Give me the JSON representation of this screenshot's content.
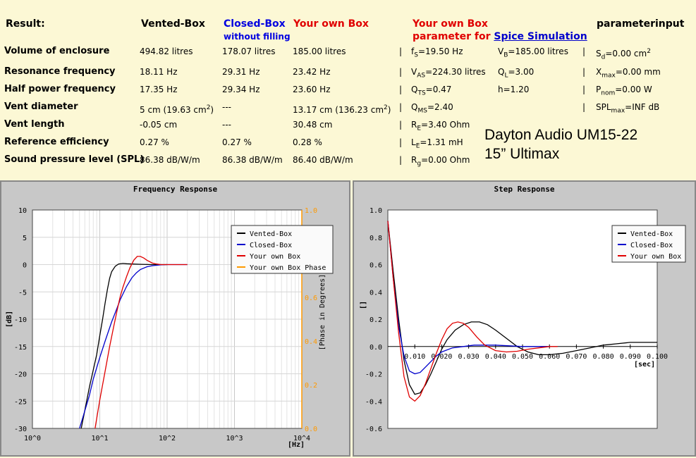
{
  "results": {
    "title": "Result:",
    "col_vented": "Vented-Box",
    "col_closed": "Closed-Box",
    "col_closed_sub": "without filling",
    "col_own": "Your own Box",
    "col_spice_1": "Your own Box",
    "col_spice_2": "parameter for",
    "col_spice_link": "Spice Simulation",
    "col_param": "parameterinput",
    "rows": [
      {
        "label": "Volume of enclosure",
        "vented": "494.82 litres",
        "closed": "178.07 litres",
        "own": "185.00 litres"
      },
      {
        "label": "Resonance frequency",
        "vented": "18.11 Hz",
        "closed": "29.31 Hz",
        "own": "23.42 Hz"
      },
      {
        "label": "Half power frequency",
        "vented": "17.35 Hz",
        "closed": "29.34 Hz",
        "own": "23.60 Hz"
      },
      {
        "label": "Vent diameter",
        "vented": "5 cm (19.63 cm",
        "closed": "---",
        "own": "13.17 cm (136.23 cm"
      },
      {
        "label": "Vent length",
        "vented": "-0.05 cm",
        "closed": "---",
        "own": "30.48 cm"
      },
      {
        "label": "Reference efficiency",
        "vented": "0.27 %",
        "closed": "0.27 %",
        "own": "0.28 %"
      },
      {
        "label": "Sound pressure level (SPL)",
        "vented": "86.38 dB/W/m",
        "closed": "86.38 dB/W/m",
        "own": "86.40 dB/W/m"
      }
    ],
    "unit_close": "2",
    "spice": {
      "fs": {
        "sym": "f",
        "sub": "S",
        "val": "=19.50 Hz"
      },
      "vas": {
        "sym": "V",
        "sub": "AS",
        "val": "=224.30 litres"
      },
      "qts": {
        "sym": "Q",
        "sub": "TS",
        "val": "=0.47"
      },
      "qms": {
        "sym": "Q",
        "sub": "MS",
        "val": "=2.40"
      },
      "re": {
        "sym": "R",
        "sub": "E",
        "val": "=3.40 Ohm"
      },
      "le": {
        "sym": "L",
        "sub": "E",
        "val": "=1.31 mH"
      },
      "rg": {
        "sym": "R",
        "sub": "g",
        "val": "=0.00 Ohm"
      },
      "vb": {
        "sym": "V",
        "sub": "B",
        "val": "=185.00 litres"
      },
      "ql": {
        "sym": "Q",
        "sub": "L",
        "val": "=3.00"
      },
      "h": "h=1.20"
    },
    "params": {
      "sd": {
        "sym": "S",
        "sub": "d",
        "val": "=0.00 cm",
        "sup": "2"
      },
      "xmax": {
        "sym": "X",
        "sub": "max",
        "val": "=0.00 mm"
      },
      "pnom": {
        "sym": "P",
        "sub": "nom",
        "val": "=0.00 W"
      },
      "spl": {
        "sym": "SPL",
        "sub": "max",
        "val": "=INF dB"
      }
    },
    "brand_line1": "Dayton Audio UM15-22",
    "brand_line2": "15” Ultimax"
  },
  "chart_data": [
    {
      "type": "line",
      "title": "Frequency Response",
      "xscale": "log",
      "xlim": [
        1,
        10000
      ],
      "ylim": [
        -30,
        10
      ],
      "y2lim": [
        0.0,
        1.0
      ],
      "xlabel": "[Hz]",
      "ylabel": "[dB]",
      "y2label": "[Phase in Degrees]",
      "x_ticks": [
        "10^0",
        "10^1",
        "10^2",
        "10^3",
        "10^4"
      ],
      "y_ticks": [
        "10",
        "5",
        "0",
        "-5",
        "-10",
        "-15",
        "-20",
        "-25",
        "-30"
      ],
      "y2_ticks": [
        "1.0",
        "0.8",
        "0.6",
        "0.4",
        "0.2",
        "0.0"
      ],
      "legend_position": "top-right",
      "series": [
        {
          "name": "Vented-Box",
          "color": "#000000",
          "x": [
            5.3,
            7,
            9,
            10,
            11,
            12,
            13,
            14,
            15,
            17,
            19,
            22,
            25,
            30,
            40,
            60,
            100
          ],
          "y": [
            -30,
            -22.5,
            -16.5,
            -13,
            -10,
            -7,
            -4.5,
            -2.5,
            -1.3,
            -0.3,
            0.1,
            0.2,
            0.15,
            0.1,
            0.05,
            0,
            0
          ]
        },
        {
          "name": "Closed-Box",
          "color": "#0000cc",
          "x": [
            5,
            7,
            8,
            10,
            12,
            15,
            18,
            20,
            25,
            30,
            35,
            40,
            50,
            60,
            80,
            100,
            200
          ],
          "y": [
            -30,
            -24,
            -21,
            -17,
            -14,
            -10.5,
            -8,
            -6.5,
            -4,
            -2.4,
            -1.5,
            -0.9,
            -0.4,
            -0.2,
            -0.05,
            0,
            0
          ]
        },
        {
          "name": "Your own Box",
          "color": "#e00000",
          "x": [
            8.5,
            10,
            12,
            14,
            16,
            18,
            20,
            22,
            25,
            28,
            32,
            36,
            40,
            45,
            50,
            60,
            70,
            80,
            100,
            200
          ],
          "y": [
            -30,
            -24.8,
            -19.5,
            -15,
            -11.5,
            -8.5,
            -6,
            -4.2,
            -2.2,
            -0.6,
            0.8,
            1.5,
            1.5,
            1.2,
            0.8,
            0.3,
            0.1,
            0,
            0,
            0
          ]
        },
        {
          "name": "Your own Box Phase",
          "color": "#ff9900",
          "x": [],
          "y": []
        }
      ]
    },
    {
      "type": "line",
      "title": "Step Response",
      "xlim": [
        0,
        0.1
      ],
      "ylim": [
        -0.6,
        1.0
      ],
      "xlabel": "[sec]",
      "ylabel": "[]",
      "x_ticks": [
        "0.010",
        "0.020",
        "0.030",
        "0.040",
        "0.050",
        "0.060",
        "0.070",
        "0.080",
        "0.090",
        "0.100"
      ],
      "y_ticks": [
        "1.0",
        "0.8",
        "0.6",
        "0.4",
        "0.2",
        "0.0",
        "-0.2",
        "-0.4",
        "-0.6"
      ],
      "legend_position": "top-right",
      "series": [
        {
          "name": "Vented-Box",
          "color": "#000000",
          "x": [
            0,
            0.002,
            0.004,
            0.006,
            0.008,
            0.01,
            0.012,
            0.014,
            0.016,
            0.018,
            0.02,
            0.022,
            0.025,
            0.028,
            0.031,
            0.034,
            0.037,
            0.04,
            0.044,
            0.048,
            0.052,
            0.056,
            0.06,
            0.065,
            0.07,
            0.075,
            0.08,
            0.085,
            0.09,
            0.095,
            0.1
          ],
          "y": [
            0.92,
            0.55,
            0.2,
            -0.1,
            -0.28,
            -0.35,
            -0.34,
            -0.28,
            -0.2,
            -0.11,
            -0.02,
            0.05,
            0.12,
            0.16,
            0.18,
            0.18,
            0.16,
            0.12,
            0.06,
            0.0,
            -0.04,
            -0.06,
            -0.06,
            -0.05,
            -0.03,
            -0.01,
            0.01,
            0.02,
            0.03,
            0.03,
            0.03
          ]
        },
        {
          "name": "Closed-Box",
          "color": "#0000cc",
          "x": [
            0,
            0.002,
            0.004,
            0.006,
            0.008,
            0.01,
            0.012,
            0.014,
            0.016,
            0.018,
            0.02,
            0.024,
            0.028,
            0.032,
            0.036,
            0.04,
            0.05,
            0.06
          ],
          "y": [
            0.92,
            0.5,
            0.15,
            -0.07,
            -0.18,
            -0.2,
            -0.19,
            -0.15,
            -0.11,
            -0.07,
            -0.04,
            -0.01,
            0.0,
            0.01,
            0.01,
            0.01,
            0.0,
            0.0
          ]
        },
        {
          "name": "Your own Box",
          "color": "#e00000",
          "x": [
            0,
            0.002,
            0.004,
            0.006,
            0.008,
            0.01,
            0.012,
            0.014,
            0.016,
            0.018,
            0.02,
            0.022,
            0.024,
            0.026,
            0.028,
            0.03,
            0.033,
            0.036,
            0.04,
            0.044,
            0.048,
            0.052,
            0.056,
            0.06,
            0.063
          ],
          "y": [
            0.92,
            0.5,
            0.1,
            -0.22,
            -0.37,
            -0.4,
            -0.36,
            -0.27,
            -0.16,
            -0.05,
            0.05,
            0.13,
            0.17,
            0.18,
            0.17,
            0.14,
            0.07,
            0.01,
            -0.03,
            -0.04,
            -0.035,
            -0.02,
            -0.01,
            0.0,
            0.0
          ]
        }
      ]
    }
  ]
}
